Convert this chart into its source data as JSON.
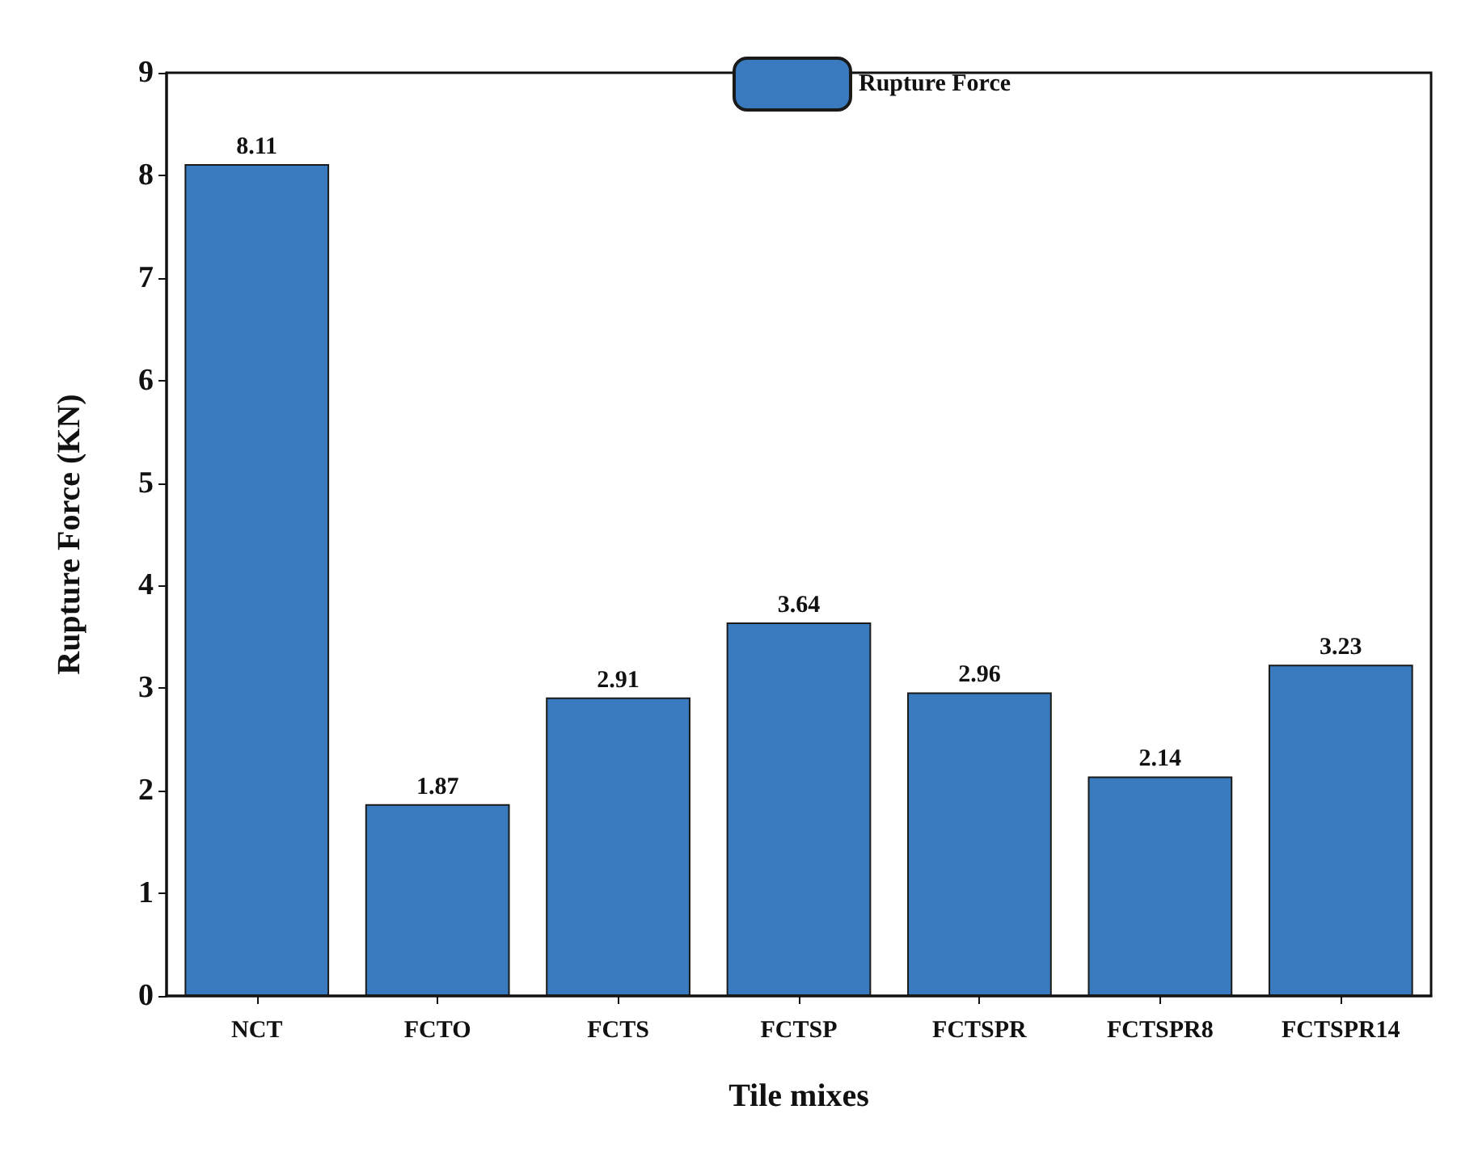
{
  "chart_data": {
    "type": "bar",
    "xlabel": "Tile mixes",
    "ylabel": "Rupture Force (KN)",
    "categories": [
      "NCT",
      "FCTO",
      "FCTS",
      "FCTSP",
      "FCTSPR",
      "FCTSPR8",
      "FCTSPR14"
    ],
    "series": [
      {
        "name": "Rupture Force",
        "color": "#3a7bbf",
        "values": [
          8.11,
          1.87,
          2.91,
          3.64,
          2.96,
          2.14,
          3.23
        ]
      }
    ],
    "ylim": [
      0,
      9
    ],
    "yticks": [
      0,
      1,
      2,
      3,
      4,
      5,
      6,
      7,
      8,
      9
    ],
    "data_labels": true,
    "legend": "top",
    "grid": false
  }
}
